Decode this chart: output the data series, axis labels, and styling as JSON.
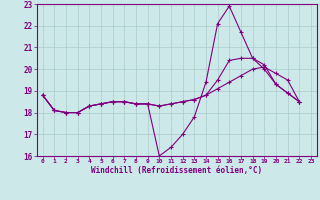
{
  "background_color": "#cce8e8",
  "line_color": "#800080",
  "grid_color": "#aacccc",
  "xlabel": "Windchill (Refroidissement éolien,°C)",
  "xlim": [
    -0.5,
    23.5
  ],
  "ylim": [
    16,
    23
  ],
  "yticks": [
    16,
    17,
    18,
    19,
    20,
    21,
    22,
    23
  ],
  "xticks": [
    0,
    1,
    2,
    3,
    4,
    5,
    6,
    7,
    8,
    9,
    10,
    11,
    12,
    13,
    14,
    15,
    16,
    17,
    18,
    19,
    20,
    21,
    22,
    23
  ],
  "xticklabels": [
    "0",
    "1",
    "2",
    "3",
    "4",
    "5",
    "6",
    "7",
    "8",
    "9",
    "10",
    "11",
    "12",
    "13",
    "14",
    "15",
    "16",
    "17",
    "18",
    "19",
    "20",
    "21",
    "22",
    "23"
  ],
  "series": [
    [
      18.8,
      18.1,
      18.0,
      18.0,
      18.3,
      18.4,
      18.5,
      18.5,
      18.4,
      18.4,
      16.0,
      16.4,
      17.0,
      17.8,
      19.4,
      22.1,
      22.9,
      21.7,
      20.5,
      20.0,
      19.3,
      18.9,
      18.5
    ],
    [
      18.8,
      18.1,
      18.0,
      18.0,
      18.3,
      18.4,
      18.5,
      18.5,
      18.4,
      18.4,
      18.3,
      18.4,
      18.5,
      18.6,
      18.8,
      19.1,
      19.4,
      19.7,
      20.0,
      20.1,
      19.8,
      19.5,
      18.5
    ],
    [
      18.8,
      18.1,
      18.0,
      18.0,
      18.3,
      18.4,
      18.5,
      18.5,
      18.4,
      18.4,
      18.3,
      18.4,
      18.5,
      18.6,
      18.8,
      19.5,
      20.4,
      20.5,
      20.5,
      20.2,
      19.3,
      18.9,
      18.5
    ]
  ]
}
